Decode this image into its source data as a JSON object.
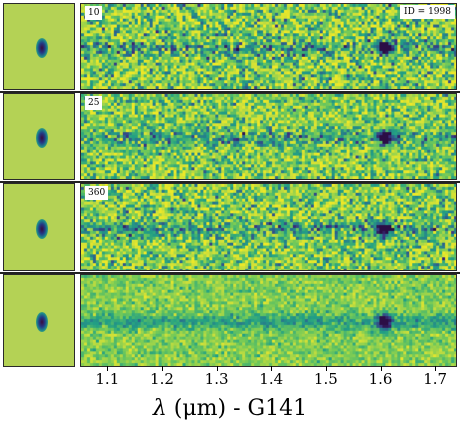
{
  "figure": {
    "id_label": "ID = 1998",
    "panels": [
      {
        "label": "10"
      },
      {
        "label": "25"
      },
      {
        "label": "360"
      },
      {
        "label": ""
      }
    ],
    "x_axis": {
      "label_lambda": "λ",
      "label_rest": " (μm) - G141",
      "ticks": [
        "1.1",
        "1.2",
        "1.3",
        "1.4",
        "1.5",
        "1.6",
        "1.7"
      ],
      "range": [
        1.05,
        1.74
      ]
    },
    "emission_line_um": 1.605,
    "colors": {
      "background_bright": "#d9e04a",
      "background_mid": "#7cc65c",
      "dark": "#2c2a78",
      "thumb_bg": "#b4d255"
    }
  }
}
